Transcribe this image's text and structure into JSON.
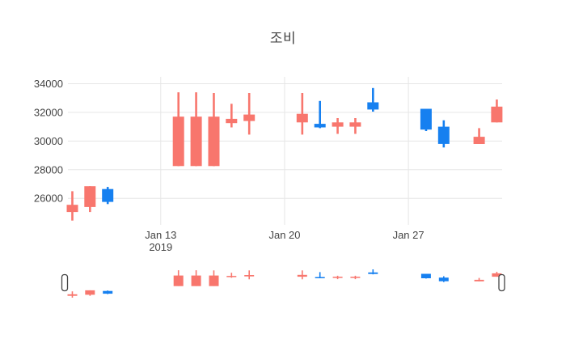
{
  "chart_data": {
    "type": "candlestick",
    "title": "조비",
    "x_axis": {
      "ticks": [
        {
          "label": "Jan 13",
          "sublabel": "2019",
          "day": 0
        },
        {
          "label": "Jan 20",
          "sublabel": "",
          "day": 7
        },
        {
          "label": "Jan 27",
          "sublabel": "",
          "day": 14
        }
      ],
      "range_days": [
        -5.25,
        19.3
      ]
    },
    "y_axis": {
      "ticks": [
        34000,
        32000,
        30000,
        28000,
        26000
      ],
      "range": [
        24150,
        34480
      ]
    },
    "series": [
      {
        "date": "Jan 8",
        "day": -5,
        "open": 25050,
        "high": 26500,
        "low": 24450,
        "close": 25550
      },
      {
        "date": "Jan 9",
        "day": -4,
        "open": 25400,
        "high": 26850,
        "low": 25050,
        "close": 26850
      },
      {
        "date": "Jan 10",
        "day": -3,
        "open": 26650,
        "high": 26800,
        "low": 25600,
        "close": 25750
      },
      {
        "date": "Jan 14",
        "day": 1,
        "open": 28250,
        "high": 33400,
        "low": 28250,
        "close": 31700
      },
      {
        "date": "Jan 15",
        "day": 2,
        "open": 28250,
        "high": 33400,
        "low": 28250,
        "close": 31700
      },
      {
        "date": "Jan 16",
        "day": 3,
        "open": 28250,
        "high": 33350,
        "low": 28250,
        "close": 31700
      },
      {
        "date": "Jan 17",
        "day": 4,
        "open": 31250,
        "high": 32600,
        "low": 30950,
        "close": 31550
      },
      {
        "date": "Jan 18",
        "day": 5,
        "open": 31400,
        "high": 33350,
        "low": 30450,
        "close": 31850
      },
      {
        "date": "Jan 21",
        "day": 8,
        "open": 31300,
        "high": 33350,
        "low": 30450,
        "close": 31900
      },
      {
        "date": "Jan 22",
        "day": 9,
        "open": 31200,
        "high": 32800,
        "low": 30900,
        "close": 30950
      },
      {
        "date": "Jan 23",
        "day": 10,
        "open": 31000,
        "high": 31600,
        "low": 30500,
        "close": 31300
      },
      {
        "date": "Jan 24",
        "day": 11,
        "open": 31000,
        "high": 31600,
        "low": 30500,
        "close": 31300
      },
      {
        "date": "Jan 25",
        "day": 12,
        "open": 32700,
        "high": 33700,
        "low": 32050,
        "close": 32200
      },
      {
        "date": "Jan 28",
        "day": 15,
        "open": 32250,
        "high": 32250,
        "low": 30700,
        "close": 30800
      },
      {
        "date": "Jan 29",
        "day": 16,
        "open": 31000,
        "high": 31450,
        "low": 29550,
        "close": 29800
      },
      {
        "date": "Jan 31",
        "day": 18,
        "open": 29800,
        "high": 30900,
        "low": 29800,
        "close": 30300
      },
      {
        "date": "Feb 1",
        "day": 19,
        "open": 31300,
        "high": 32900,
        "low": 31300,
        "close": 32400
      }
    ],
    "colors": {
      "increasing": "#f8766d",
      "decreasing": "#1680f0",
      "grid": "#e6e6e6",
      "text": "#444444",
      "handle_fill": "#ffffff",
      "handle_stroke": "#444444"
    },
    "grid": true,
    "legend_position": "none",
    "rangeslider": true
  }
}
